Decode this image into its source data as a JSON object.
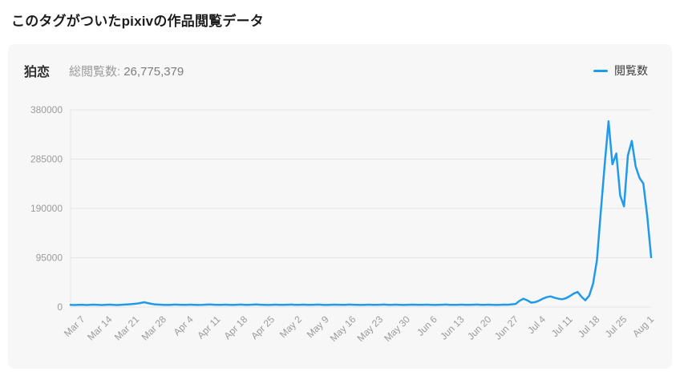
{
  "page": {
    "title": "このタグがついたpixivの作品閲覧データ"
  },
  "card": {
    "tag_name": "狛恋",
    "total_label": "総閲覧数:",
    "total_value": "26,775,379",
    "legend": {
      "label": "閲覧数",
      "color": "#1f9be9"
    }
  },
  "chart_data": {
    "type": "line",
    "title": "このタグがついたpixivの作品閲覧データ",
    "xlabel": "",
    "ylabel": "",
    "ylim": [
      0,
      380000
    ],
    "y_ticks": [
      0,
      95000,
      190000,
      285000,
      380000
    ],
    "grid": true,
    "legend_position": "top-right",
    "grid_color": "#e5e5e7",
    "axis_text_color": "#9b9b9b",
    "x_unit": "day",
    "x_start": "Mar 4",
    "x_end": "Aug 1",
    "x_tick_labels": [
      "Mar 7",
      "Mar 14",
      "Mar 21",
      "Mar 28",
      "Apr 4",
      "Apr 11",
      "Apr 18",
      "Apr 25",
      "May 2",
      "May 9",
      "May 16",
      "May 23",
      "May 30",
      "Jun 6",
      "Jun 13",
      "Jun 20",
      "Jun 27",
      "Jul 4",
      "Jul 11",
      "Jul 18",
      "Jul 25",
      "Aug 1"
    ],
    "x_tick_day_index": [
      3,
      10,
      17,
      24,
      31,
      38,
      45,
      52,
      59,
      66,
      73,
      80,
      87,
      94,
      101,
      108,
      115,
      122,
      129,
      136,
      143,
      150
    ],
    "series": [
      {
        "name": "閲覧数",
        "color": "#1f9be9",
        "values": [
          4200,
          3800,
          4100,
          4500,
          3900,
          4300,
          4600,
          4100,
          3800,
          4400,
          4700,
          4200,
          3900,
          4300,
          4800,
          5200,
          5800,
          6500,
          7800,
          9200,
          7500,
          6000,
          5000,
          4600,
          4300,
          4000,
          4400,
          4800,
          4500,
          4100,
          4300,
          4700,
          4400,
          4000,
          4200,
          4600,
          4900,
          4500,
          4100,
          4400,
          4700,
          4300,
          4000,
          4500,
          4800,
          4400,
          4100,
          4600,
          4900,
          4500,
          4200,
          4000,
          4400,
          4700,
          4300,
          4100,
          4500,
          4800,
          4400,
          4200,
          4600,
          4300,
          4100,
          4500,
          4800,
          4400,
          4000,
          4300,
          4700,
          4500,
          4100,
          4400,
          4800,
          4500,
          4200,
          4000,
          4400,
          4700,
          4300,
          4100,
          4500,
          4800,
          4400,
          4200,
          4600,
          4300,
          4000,
          4400,
          4700,
          4500,
          4100,
          4300,
          4600,
          4400,
          4000,
          4200,
          4500,
          4800,
          4400,
          4100,
          4300,
          4600,
          4400,
          4100,
          4500,
          4800,
          4400,
          4200,
          4600,
          4300,
          4000,
          4400,
          4700,
          4500,
          5200,
          6000,
          12000,
          16000,
          13000,
          8500,
          9500,
          12000,
          16000,
          19000,
          20500,
          18000,
          16000,
          15000,
          17000,
          21000,
          26000,
          29000,
          20000,
          13000,
          22000,
          45000,
          90000,
          185000,
          275000,
          358000,
          275000,
          296000,
          215000,
          194000,
          292000,
          320000,
          271000,
          249000,
          238000,
          175000,
          96000
        ]
      }
    ]
  }
}
